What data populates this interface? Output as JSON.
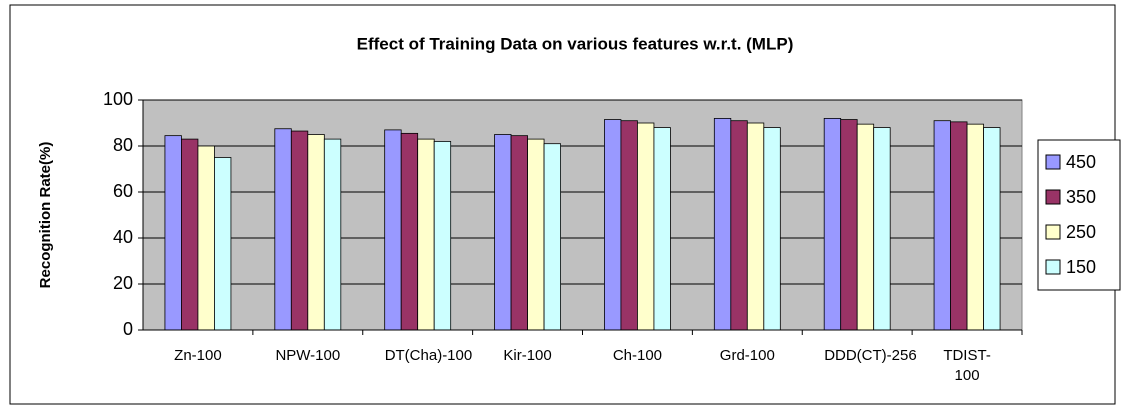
{
  "chart_data": {
    "type": "bar",
    "title": "Effect of Training Data on various features w.r.t. (MLP)",
    "y_label": "Recognition Rate(%)",
    "categories": [
      "Zn-100",
      "NPW-100",
      "DT(Cha)-100",
      "Kir-100",
      "Ch-100",
      "Grd-100",
      "DDD(CT)-256",
      "TDIST-100"
    ],
    "series": [
      {
        "name": "450",
        "color": "#9999ff",
        "values": [
          84.5,
          87.5,
          87,
          85,
          91.5,
          92,
          92,
          91
        ]
      },
      {
        "name": "350",
        "color": "#993366",
        "values": [
          83,
          86.5,
          85.5,
          84.5,
          91,
          91,
          91.5,
          90.5
        ]
      },
      {
        "name": "250",
        "color": "#ffffcc",
        "values": [
          80,
          85,
          83,
          83,
          90,
          90,
          89.5,
          89.5
        ]
      },
      {
        "name": "150",
        "color": "#ccffff",
        "values": [
          75,
          83,
          82,
          81,
          88,
          88,
          88,
          88
        ]
      }
    ],
    "ylim": [
      0,
      100
    ],
    "yticks": [
      0,
      20,
      40,
      60,
      80,
      100
    ],
    "grid": true,
    "legend": "right"
  }
}
